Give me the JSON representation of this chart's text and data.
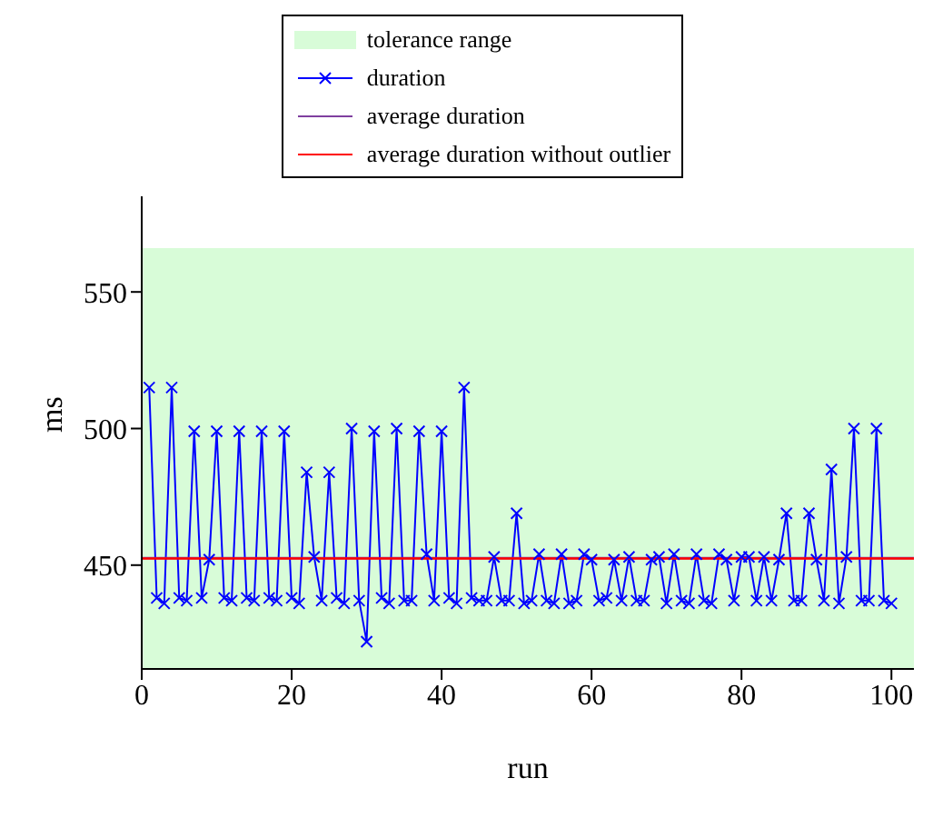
{
  "chart_data": {
    "type": "line",
    "xlabel": "run",
    "ylabel": "ms",
    "x": [
      1,
      2,
      3,
      4,
      5,
      6,
      7,
      8,
      9,
      10,
      11,
      12,
      13,
      14,
      15,
      16,
      17,
      18,
      19,
      20,
      21,
      22,
      23,
      24,
      25,
      26,
      27,
      28,
      29,
      30,
      31,
      32,
      33,
      34,
      35,
      36,
      37,
      38,
      39,
      40,
      41,
      42,
      43,
      44,
      45,
      46,
      47,
      48,
      49,
      50,
      51,
      52,
      53,
      54,
      55,
      56,
      57,
      58,
      59,
      60,
      61,
      62,
      63,
      64,
      65,
      66,
      67,
      68,
      69,
      70,
      71,
      72,
      73,
      74,
      75,
      76,
      77,
      78,
      79,
      80,
      81,
      82,
      83,
      84,
      85,
      86,
      87,
      88,
      89,
      90,
      91,
      92,
      93,
      94,
      95,
      96,
      97,
      98,
      99,
      100
    ],
    "series": [
      {
        "name": "duration",
        "color": "#0000ff",
        "marker": "cross",
        "values": [
          515,
          438,
          436,
          515,
          438,
          437,
          499,
          438,
          452,
          499,
          438,
          437,
          499,
          438,
          437,
          499,
          438,
          437,
          499,
          438,
          436,
          484,
          453,
          437,
          484,
          438,
          436,
          500,
          437,
          422,
          499,
          438,
          436,
          500,
          437,
          437,
          499,
          454,
          437,
          499,
          438,
          436,
          515,
          438,
          437,
          437,
          453,
          437,
          437,
          469,
          436,
          437,
          454,
          437,
          436,
          454,
          436,
          437,
          454,
          452,
          437,
          438,
          452,
          437,
          453,
          437,
          437,
          452,
          453,
          436,
          454,
          437,
          436,
          454,
          437,
          436,
          454,
          452,
          437,
          453,
          453,
          437,
          453,
          437,
          452,
          469,
          437,
          437,
          469,
          452,
          437,
          485,
          436,
          453,
          500,
          437,
          437,
          500,
          437,
          436
        ]
      }
    ],
    "ref_lines": [
      {
        "axis": "y",
        "value": 452.6,
        "label": "average duration",
        "color": "#7f3f9f"
      },
      {
        "axis": "y",
        "value": 452.4,
        "label": "average duration without outlier",
        "color": "#ff0000"
      }
    ],
    "bands": [
      {
        "axis": "y",
        "from": 412,
        "to": 566,
        "label": "tolerance range",
        "color": "#d8fcd8"
      }
    ],
    "xlim": [
      0,
      103
    ],
    "xticks": [
      0,
      20,
      40,
      60,
      80,
      100
    ],
    "ylim": [
      412,
      585
    ],
    "yticks": [
      450,
      500,
      550
    ],
    "legend": "top"
  }
}
